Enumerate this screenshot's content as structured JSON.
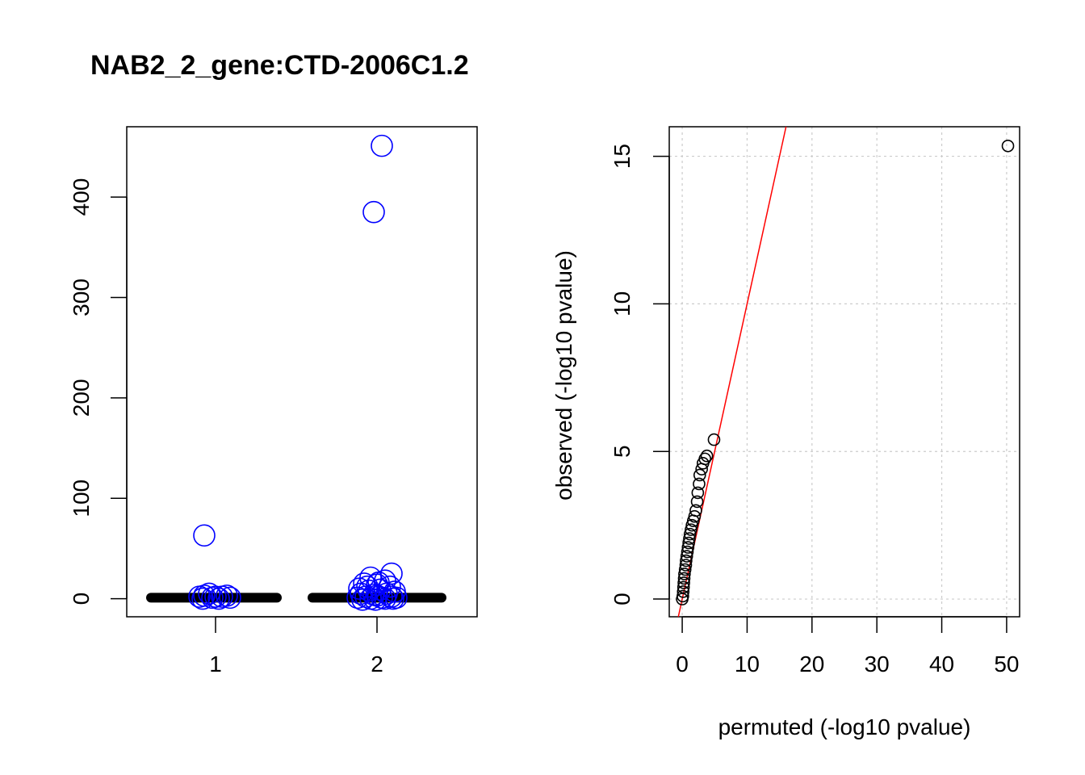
{
  "figure": {
    "title": "NAB2_2_gene:CTD-2006C1.2"
  },
  "chart_data": [
    {
      "type": "scatter",
      "subtype": "strip/jitter with black baseline bars",
      "title": "NAB2_2_gene:CTD-2006C1.2",
      "xlabel": "",
      "ylabel": "",
      "categories": [
        "1",
        "2"
      ],
      "xlim": [
        0.45,
        2.62
      ],
      "ylim": [
        -18,
        470
      ],
      "xticks": [
        1,
        2
      ],
      "yticks": [
        0,
        100,
        200,
        300,
        400
      ],
      "baseline_bars": [
        {
          "category": "1",
          "from": 0.6,
          "to": 1.38,
          "value": 1,
          "color": "#000000"
        },
        {
          "category": "2",
          "from": 1.6,
          "to": 2.4,
          "value": 1,
          "color": "#000000"
        }
      ],
      "series": [
        {
          "color": "#0000ff",
          "marker": "open-circle",
          "points": [
            {
              "x": 0.93,
              "y": 63
            },
            {
              "x": 0.9,
              "y": 2
            },
            {
              "x": 0.93,
              "y": 3
            },
            {
              "x": 0.96,
              "y": 5
            },
            {
              "x": 0.98,
              "y": 1
            },
            {
              "x": 1.0,
              "y": 2
            },
            {
              "x": 1.02,
              "y": 0
            },
            {
              "x": 1.04,
              "y": 2
            },
            {
              "x": 1.07,
              "y": 3
            },
            {
              "x": 1.09,
              "y": 1
            },
            {
              "x": 0.92,
              "y": 0
            },
            {
              "x": 2.03,
              "y": 451
            },
            {
              "x": 1.98,
              "y": 385
            },
            {
              "x": 2.09,
              "y": 25
            },
            {
              "x": 1.96,
              "y": 21
            },
            {
              "x": 2.05,
              "y": 18
            },
            {
              "x": 1.92,
              "y": 15
            },
            {
              "x": 2.0,
              "y": 14
            },
            {
              "x": 2.08,
              "y": 12
            },
            {
              "x": 1.89,
              "y": 10
            },
            {
              "x": 1.95,
              "y": 8
            },
            {
              "x": 2.02,
              "y": 9
            },
            {
              "x": 2.11,
              "y": 7
            },
            {
              "x": 1.9,
              "y": 5
            },
            {
              "x": 1.98,
              "y": 4
            },
            {
              "x": 2.06,
              "y": 5
            },
            {
              "x": 1.93,
              "y": 2
            },
            {
              "x": 2.0,
              "y": 3
            },
            {
              "x": 2.09,
              "y": 2
            },
            {
              "x": 1.88,
              "y": 1
            },
            {
              "x": 1.96,
              "y": 0
            },
            {
              "x": 2.03,
              "y": 1
            },
            {
              "x": 2.1,
              "y": 0
            },
            {
              "x": 1.91,
              "y": -1
            },
            {
              "x": 1.99,
              "y": -1
            },
            {
              "x": 2.05,
              "y": 0
            },
            {
              "x": 2.12,
              "y": 1
            },
            {
              "x": 1.94,
              "y": 12
            },
            {
              "x": 2.01,
              "y": 16
            }
          ]
        }
      ]
    },
    {
      "type": "scatter",
      "subtype": "qq plot",
      "title": "",
      "xlabel": "permuted (-log10 pvalue)",
      "ylabel": "observed (-log10 pvalue)",
      "xlim": [
        -2,
        52
      ],
      "ylim": [
        -0.6,
        16
      ],
      "xticks": [
        0,
        10,
        20,
        30,
        40,
        50
      ],
      "yticks": [
        0,
        5,
        10,
        15
      ],
      "grid": true,
      "reference_line": {
        "slope": 1,
        "intercept": 0,
        "color": "#ff0000"
      },
      "series": [
        {
          "color": "#000000",
          "marker": "open-circle",
          "points": [
            {
              "x": 0.0,
              "y": 0.0
            },
            {
              "x": 0.1,
              "y": 0.1
            },
            {
              "x": 0.15,
              "y": 0.25
            },
            {
              "x": 0.2,
              "y": 0.4
            },
            {
              "x": 0.25,
              "y": 0.55
            },
            {
              "x": 0.3,
              "y": 0.7
            },
            {
              "x": 0.35,
              "y": 0.85
            },
            {
              "x": 0.45,
              "y": 1.0
            },
            {
              "x": 0.55,
              "y": 1.15
            },
            {
              "x": 0.6,
              "y": 1.3
            },
            {
              "x": 0.7,
              "y": 1.45
            },
            {
              "x": 0.8,
              "y": 1.6
            },
            {
              "x": 0.9,
              "y": 1.75
            },
            {
              "x": 1.0,
              "y": 1.9
            },
            {
              "x": 1.1,
              "y": 2.05
            },
            {
              "x": 1.2,
              "y": 2.2
            },
            {
              "x": 1.35,
              "y": 2.35
            },
            {
              "x": 1.5,
              "y": 2.5
            },
            {
              "x": 1.7,
              "y": 2.65
            },
            {
              "x": 1.9,
              "y": 2.8
            },
            {
              "x": 2.1,
              "y": 3.0
            },
            {
              "x": 2.3,
              "y": 3.3
            },
            {
              "x": 2.4,
              "y": 3.6
            },
            {
              "x": 2.6,
              "y": 3.9
            },
            {
              "x": 2.7,
              "y": 4.2
            },
            {
              "x": 3.0,
              "y": 4.4
            },
            {
              "x": 3.2,
              "y": 4.6
            },
            {
              "x": 3.5,
              "y": 4.75
            },
            {
              "x": 3.8,
              "y": 4.85
            },
            {
              "x": 4.9,
              "y": 5.4
            },
            {
              "x": 50.2,
              "y": 15.35
            }
          ]
        }
      ]
    }
  ]
}
